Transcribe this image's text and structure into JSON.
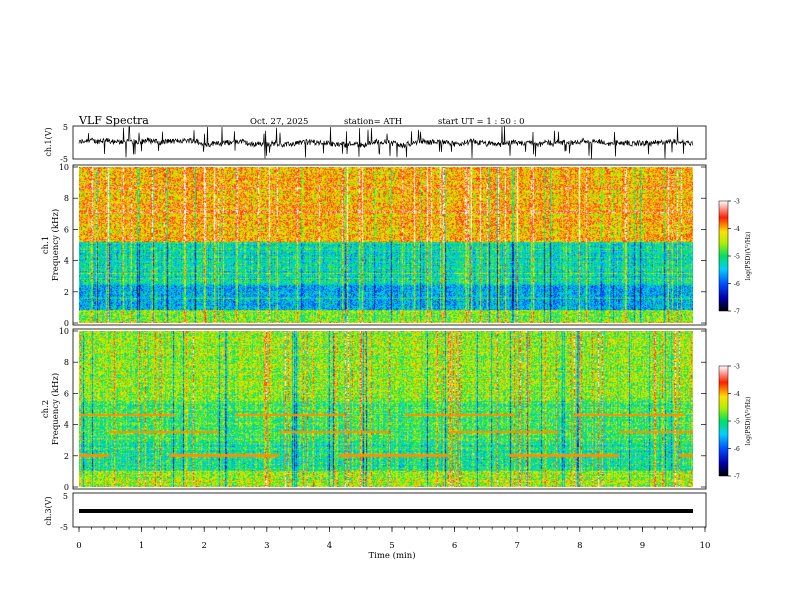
{
  "header": {
    "title": "VLF  Spectra",
    "date": "Oct. 27, 2025",
    "station": "station= ATH",
    "start": "start  UT  =   1  : 50 : 0"
  },
  "chart_data": [
    {
      "type": "line",
      "id": "ch1-waveform",
      "ylabel": "ch.1(V)",
      "ylim": [
        -5,
        5
      ],
      "yticks": [
        "5",
        "-5"
      ],
      "description_series": "noisy waveform, baseline ~0 V, spikes to limits",
      "xlim": [
        0,
        10
      ]
    },
    {
      "type": "heatmap",
      "id": "ch1-spectrogram",
      "ylabel": "ch.1\nFrequency (kHz)",
      "ylabel_line1": "ch.1",
      "ylabel_line2": "Frequency  (kHz)",
      "ylim": [
        0,
        10
      ],
      "yticks": [
        "0",
        "2",
        "4",
        "6",
        "8",
        "10"
      ],
      "colorbar": {
        "label": "log(PSD)(V²/Hz)",
        "range": [
          -7,
          -3
        ],
        "ticks": [
          "-3",
          "-4",
          "-5",
          "-6",
          "-7"
        ]
      },
      "bands": [
        {
          "from_khz": 0,
          "to_khz": 0.8,
          "level": -4.6
        },
        {
          "from_khz": 0.8,
          "to_khz": 2.4,
          "level": -5.6
        },
        {
          "from_khz": 2.4,
          "to_khz": 5.2,
          "level": -5.2
        },
        {
          "from_khz": 5.2,
          "to_khz": 10,
          "level": -4.0
        }
      ]
    },
    {
      "type": "heatmap",
      "id": "ch2-spectrogram",
      "ylabel_line1": "ch.2",
      "ylabel_line2": "Frequency  (kHz)",
      "ylim": [
        0,
        10
      ],
      "yticks": [
        "0",
        "2",
        "4",
        "6",
        "8",
        "10"
      ],
      "colorbar": {
        "label": "log(PSD)(V²/Hz)",
        "range": [
          -7,
          -3
        ],
        "ticks": [
          "-3",
          "-4",
          "-5",
          "-6",
          "-7"
        ]
      },
      "tones_khz": [
        2.0,
        3.5,
        4.6
      ],
      "bands": [
        {
          "from_khz": 0,
          "to_khz": 1.0,
          "level": -4.5
        },
        {
          "from_khz": 1.0,
          "to_khz": 3.0,
          "level": -5.1
        },
        {
          "from_khz": 3.0,
          "to_khz": 5.5,
          "level": -4.9
        },
        {
          "from_khz": 5.5,
          "to_khz": 10,
          "level": -4.6
        }
      ]
    },
    {
      "type": "line",
      "id": "ch3-waveform",
      "ylabel": "ch.3(V)",
      "ylim": [
        -5,
        5
      ],
      "yticks": [
        "5",
        "-5"
      ],
      "baseline_v": -1.2,
      "xlim": [
        0,
        10
      ],
      "xlabel": "Time  (min)",
      "xticks": [
        "0",
        "1",
        "2",
        "3",
        "4",
        "5",
        "6",
        "7",
        "8",
        "9",
        "10"
      ]
    }
  ]
}
